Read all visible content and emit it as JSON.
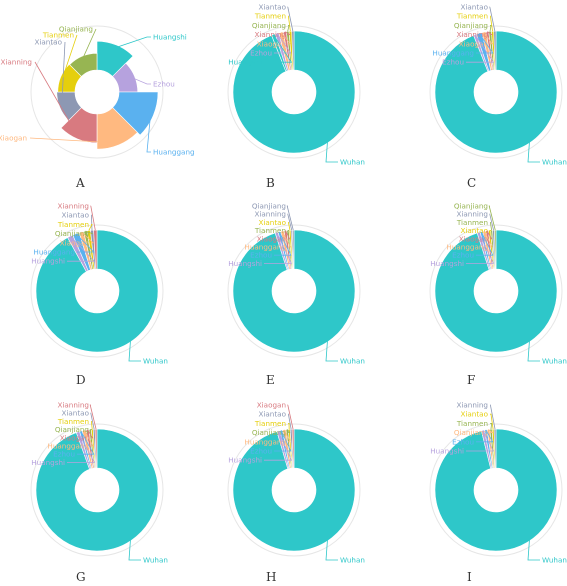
{
  "colors": {
    "Wuhan": "#2ec7c9",
    "Huangshi": "#2ec7c9",
    "Ezhou": "#b6a2de",
    "Huanggang": "#5ab1ef",
    "Xiaogan": "#ffb980",
    "Xianning": "#d87a80",
    "Xiantao": "#8d98b3",
    "Tianmen": "#e5cf0d",
    "Qianjiang": "#97b552",
    "ring": "#e6e6e6"
  },
  "chart_data": [
    {
      "type": "pie",
      "panel": "A",
      "style": "rose",
      "slices": [
        {
          "name": "Huangshi",
          "value": 60,
          "color": "Huangshi",
          "label_side": "right"
        },
        {
          "name": "Ezhou",
          "value": 20,
          "color": "Ezhou",
          "label_side": "right"
        },
        {
          "name": "Huanggang",
          "value": 100,
          "color": "Huanggang",
          "label_side": "right"
        },
        {
          "name": "Xiaogan",
          "value": 85,
          "color": "Xiaogan",
          "label_side": "left"
        },
        {
          "name": "Xianning",
          "value": 60,
          "color": "Xianning",
          "label_side": "left"
        },
        {
          "name": "Xiantao",
          "value": 18,
          "color": "Xiantao",
          "label_side": "left"
        },
        {
          "name": "Tianmen",
          "value": 14,
          "color": "Tianmen",
          "label_side": "left"
        },
        {
          "name": "Qianjiang",
          "value": 12,
          "color": "Qianjiang",
          "label_side": "left"
        }
      ]
    },
    {
      "type": "pie",
      "panel": "B",
      "slices": [
        {
          "name": "Wuhan",
          "value": 94.0,
          "color": "Wuhan",
          "label_side": "right"
        },
        {
          "name": "Huangshi",
          "value": 1.0,
          "color": "Huangshi",
          "label_side": "left"
        },
        {
          "name": "Ezhou",
          "value": 1.0,
          "color": "Ezhou",
          "label_side": "left"
        },
        {
          "name": "Xiaogan",
          "value": 1.2,
          "color": "Xiaogan",
          "label_side": "left"
        },
        {
          "name": "Xianning",
          "value": 0.8,
          "color": "Xianning",
          "label_side": "left"
        },
        {
          "name": "Qianjiang",
          "value": 0.7,
          "color": "Qianjiang",
          "label_side": "left"
        },
        {
          "name": "Tianmen",
          "value": 0.7,
          "color": "Tianmen",
          "label_side": "left"
        },
        {
          "name": "Xiantao",
          "value": 0.6,
          "color": "Xiantao",
          "label_side": "left"
        }
      ]
    },
    {
      "type": "pie",
      "panel": "C",
      "slices": [
        {
          "name": "Wuhan",
          "value": 94.0,
          "color": "Wuhan",
          "label_side": "right"
        },
        {
          "name": "Ezhou",
          "value": 0.8,
          "color": "Ezhou",
          "label_side": "left"
        },
        {
          "name": "Huanggang",
          "value": 1.5,
          "color": "Huanggang",
          "label_side": "left"
        },
        {
          "name": "Xiaogan",
          "value": 1.1,
          "color": "Xiaogan",
          "label_side": "left"
        },
        {
          "name": "Xianning",
          "value": 0.7,
          "color": "Xianning",
          "label_side": "left"
        },
        {
          "name": "Qianjiang",
          "value": 0.7,
          "color": "Qianjiang",
          "label_side": "left"
        },
        {
          "name": "Tianmen",
          "value": 0.6,
          "color": "Tianmen",
          "label_side": "left"
        },
        {
          "name": "Xiantao",
          "value": 0.6,
          "color": "Xiantao",
          "label_side": "left"
        }
      ]
    },
    {
      "type": "pie",
      "panel": "D",
      "slices": [
        {
          "name": "Wuhan",
          "value": 92.0,
          "color": "Wuhan",
          "label_side": "right"
        },
        {
          "name": "Huangshi",
          "value": 1.5,
          "color": "Ezhou",
          "label_side": "left"
        },
        {
          "name": "Huanggang",
          "value": 1.8,
          "color": "Huanggang",
          "label_side": "left"
        },
        {
          "name": "Xiaogan",
          "value": 1.2,
          "color": "Xiaogan",
          "label_side": "left"
        },
        {
          "name": "Qianjiang",
          "value": 0.9,
          "color": "Qianjiang",
          "label_side": "left"
        },
        {
          "name": "Tianmen",
          "value": 0.9,
          "color": "Tianmen",
          "label_side": "left"
        },
        {
          "name": "Xiantao",
          "value": 0.8,
          "color": "Xiantao",
          "label_side": "left"
        },
        {
          "name": "Xianning",
          "value": 0.9,
          "color": "Xianning",
          "label_side": "left"
        }
      ]
    },
    {
      "type": "pie",
      "panel": "E",
      "slices": [
        {
          "name": "Wuhan",
          "value": 95.0,
          "color": "Wuhan",
          "label_side": "right"
        },
        {
          "name": "Huangshi",
          "value": 0.8,
          "color": "Ezhou",
          "label_side": "left"
        },
        {
          "name": "Ezhou",
          "value": 0.7,
          "color": "Huanggang",
          "label_side": "left"
        },
        {
          "name": "Huanggang",
          "value": 0.9,
          "color": "Xiaogan",
          "label_side": "left"
        },
        {
          "name": "Xiaogan",
          "value": 0.7,
          "color": "Xianning",
          "label_side": "left"
        },
        {
          "name": "Tianmen",
          "value": 0.6,
          "color": "Qianjiang",
          "label_side": "left"
        },
        {
          "name": "Xiantao",
          "value": 0.5,
          "color": "Tianmen",
          "label_side": "left"
        },
        {
          "name": "Xianning",
          "value": 0.4,
          "color": "Xiantao",
          "label_side": "left"
        },
        {
          "name": "Qianjiang",
          "value": 0.4,
          "color": "Xiantao",
          "label_side": "left"
        }
      ]
    },
    {
      "type": "pie",
      "panel": "F",
      "slices": [
        {
          "name": "Wuhan",
          "value": 95.0,
          "color": "Wuhan",
          "label_side": "right"
        },
        {
          "name": "Huangshi",
          "value": 0.8,
          "color": "Ezhou",
          "label_side": "left"
        },
        {
          "name": "Ezhou",
          "value": 0.7,
          "color": "Huanggang",
          "label_side": "left"
        },
        {
          "name": "Huanggang",
          "value": 0.8,
          "color": "Xiaogan",
          "label_side": "left"
        },
        {
          "name": "Xiaogan",
          "value": 0.7,
          "color": "Xianning",
          "label_side": "left"
        },
        {
          "name": "Xiantao",
          "value": 0.6,
          "color": "Tianmen",
          "label_side": "left"
        },
        {
          "name": "Tianmen",
          "value": 0.5,
          "color": "Qianjiang",
          "label_side": "left"
        },
        {
          "name": "Xianning",
          "value": 0.5,
          "color": "Xiantao",
          "label_side": "left"
        },
        {
          "name": "Qianjiang",
          "value": 0.4,
          "color": "Qianjiang",
          "label_side": "left"
        }
      ]
    },
    {
      "type": "pie",
      "panel": "G",
      "slices": [
        {
          "name": "Wuhan",
          "value": 94.5,
          "color": "Wuhan",
          "label_side": "right"
        },
        {
          "name": "Huangshi",
          "value": 0.9,
          "color": "Ezhou",
          "label_side": "left"
        },
        {
          "name": "Ezhou",
          "value": 0.7,
          "color": "Huanggang",
          "label_side": "left"
        },
        {
          "name": "Huanggang",
          "value": 1.0,
          "color": "Xiaogan",
          "label_side": "left"
        },
        {
          "name": "Xiaogan",
          "value": 0.8,
          "color": "Xianning",
          "label_side": "left"
        },
        {
          "name": "Qianjiang",
          "value": 0.6,
          "color": "Qianjiang",
          "label_side": "left"
        },
        {
          "name": "Tianmen",
          "value": 0.5,
          "color": "Tianmen",
          "label_side": "left"
        },
        {
          "name": "Xiantao",
          "value": 0.5,
          "color": "Xiantao",
          "label_side": "left"
        },
        {
          "name": "Xianning",
          "value": 0.5,
          "color": "Xianning",
          "label_side": "left"
        }
      ]
    },
    {
      "type": "pie",
      "panel": "H",
      "slices": [
        {
          "name": "Wuhan",
          "value": 95.0,
          "color": "Wuhan",
          "label_side": "right"
        },
        {
          "name": "Huangshi",
          "value": 0.8,
          "color": "Ezhou",
          "label_side": "left"
        },
        {
          "name": "Ezhou",
          "value": 0.7,
          "color": "Huanggang",
          "label_side": "left"
        },
        {
          "name": "Huanggang",
          "value": 0.9,
          "color": "Xiaogan",
          "label_side": "left"
        },
        {
          "name": "Qianjiang",
          "value": 0.6,
          "color": "Qianjiang",
          "label_side": "left"
        },
        {
          "name": "Tianmen",
          "value": 0.5,
          "color": "Tianmen",
          "label_side": "left"
        },
        {
          "name": "Xiantao",
          "value": 0.5,
          "color": "Xiantao",
          "label_side": "left"
        },
        {
          "name": "Xiaogan",
          "value": 0.5,
          "color": "Xianning",
          "label_side": "left"
        }
      ]
    },
    {
      "type": "pie",
      "panel": "I",
      "slices": [
        {
          "name": "Wuhan",
          "value": 95.0,
          "color": "Wuhan",
          "label_side": "right"
        },
        {
          "name": "Huangshi",
          "value": 0.8,
          "color": "Ezhou",
          "label_side": "left"
        },
        {
          "name": "Ezhou",
          "value": 0.7,
          "color": "Huanggang",
          "label_side": "left"
        },
        {
          "name": "Qianjiang",
          "value": 0.7,
          "color": "Xiaogan",
          "label_side": "left"
        },
        {
          "name": "Tianmen",
          "value": 0.6,
          "color": "Qianjiang",
          "label_side": "left"
        },
        {
          "name": "Xiantao",
          "value": 0.5,
          "color": "Tianmen",
          "label_side": "left"
        },
        {
          "name": "Xianning",
          "value": 0.5,
          "color": "Xiantao",
          "label_side": "left"
        }
      ]
    }
  ]
}
